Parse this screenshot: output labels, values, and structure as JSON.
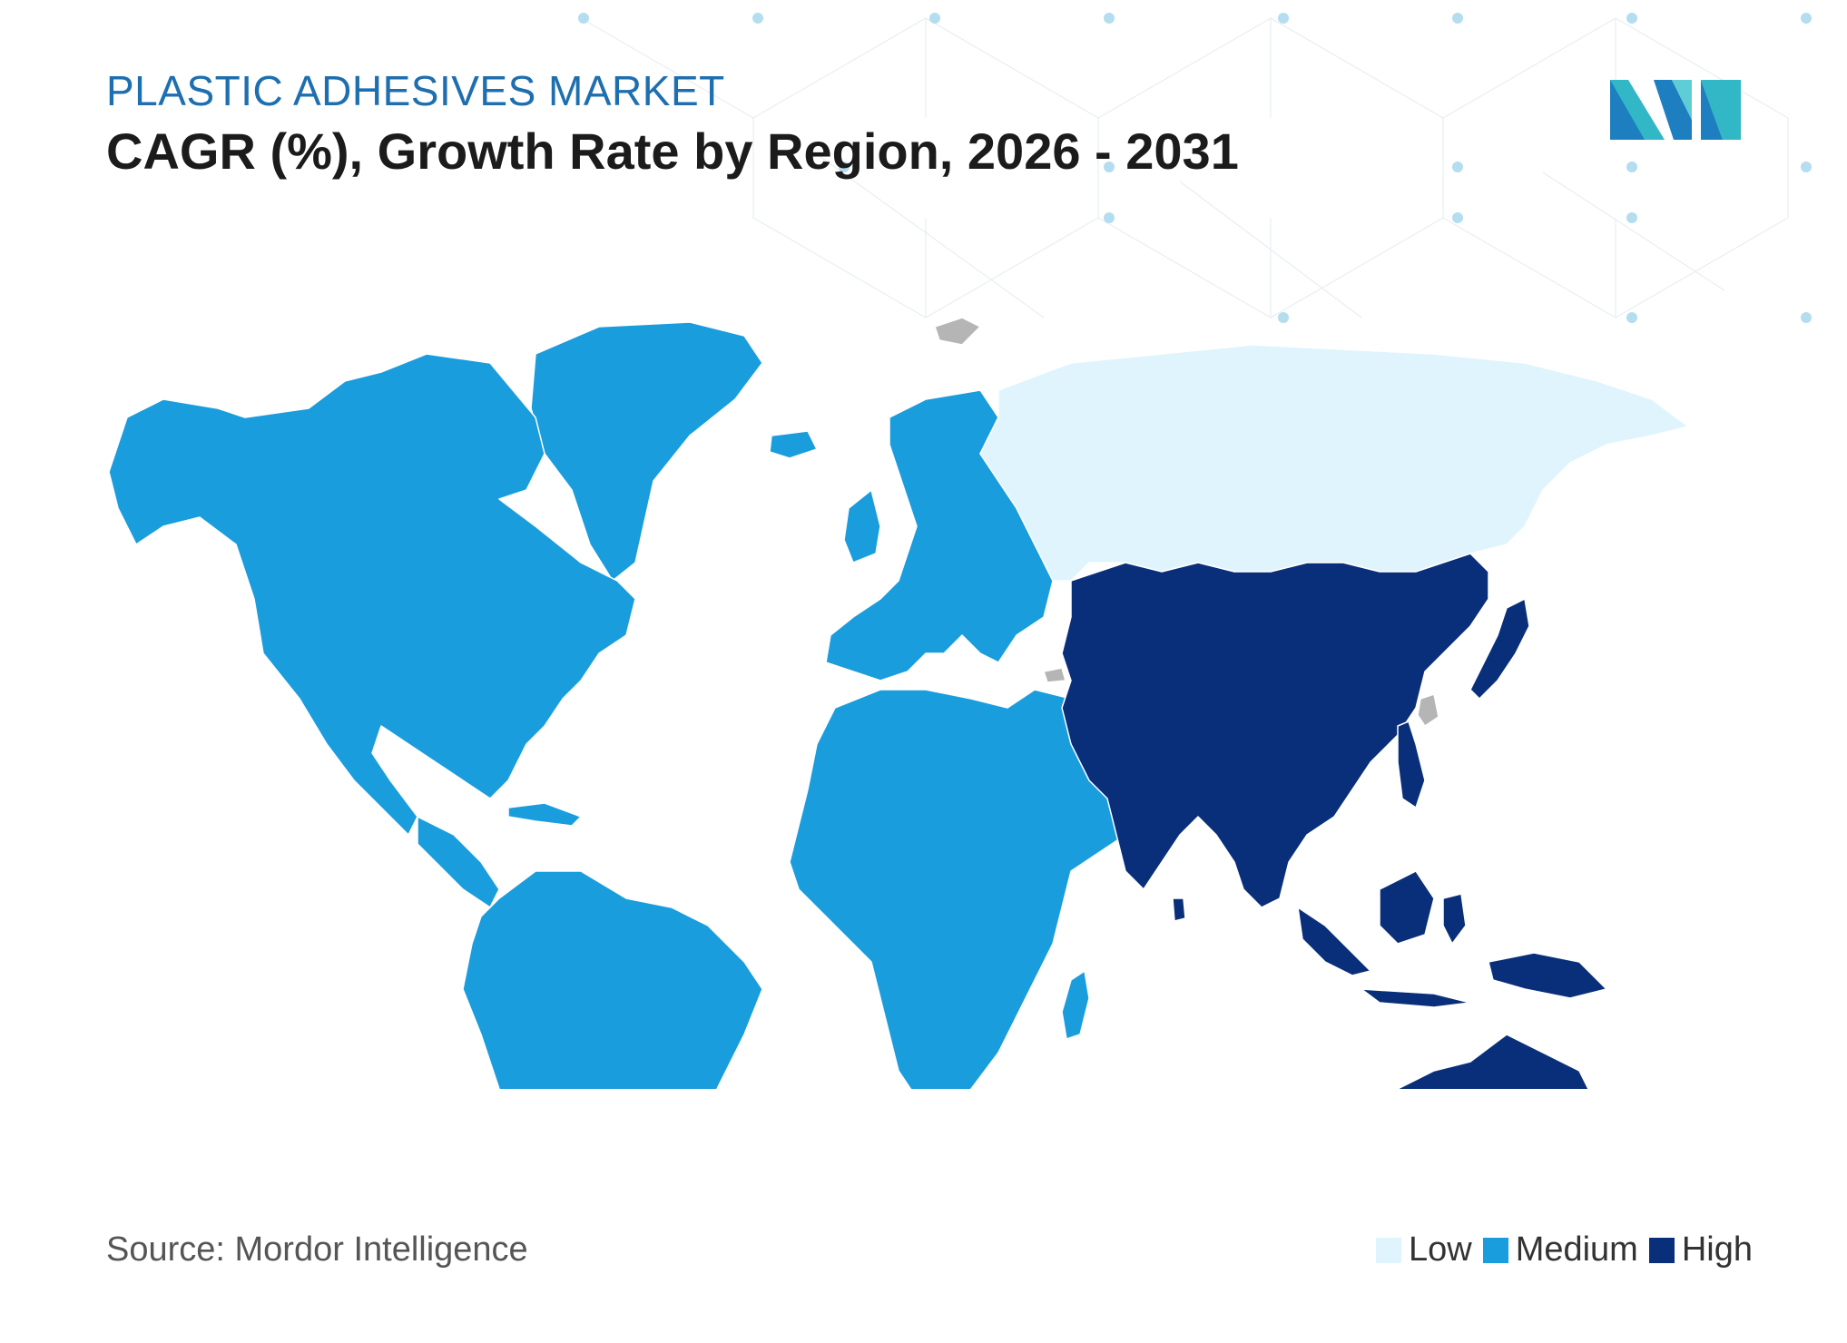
{
  "header": {
    "subtitle": "PLASTIC ADHESIVES MARKET",
    "title": "CAGR (%), Growth Rate by Region, 2026 - 2031"
  },
  "source": "Source: Mordor Intelligence",
  "legend": [
    {
      "label": "Low",
      "color": "#dff4fd"
    },
    {
      "label": "Medium",
      "color": "#1a9ddd"
    },
    {
      "label": "High",
      "color": "#0a2f7a"
    }
  ],
  "regions": [
    {
      "name": "North America",
      "level": "Medium"
    },
    {
      "name": "South America",
      "level": "Medium"
    },
    {
      "name": "Europe",
      "level": "Medium"
    },
    {
      "name": "Middle East and Africa",
      "level": "Medium"
    },
    {
      "name": "Russia",
      "level": "Low"
    },
    {
      "name": "Asia-Pacific",
      "level": "High"
    }
  ],
  "colors": {
    "no_data": "#b5b5b5",
    "border": "#ffffff",
    "pattern": "#9fd6ee"
  },
  "icons": {
    "logo": "mordor-intelligence-logo"
  }
}
